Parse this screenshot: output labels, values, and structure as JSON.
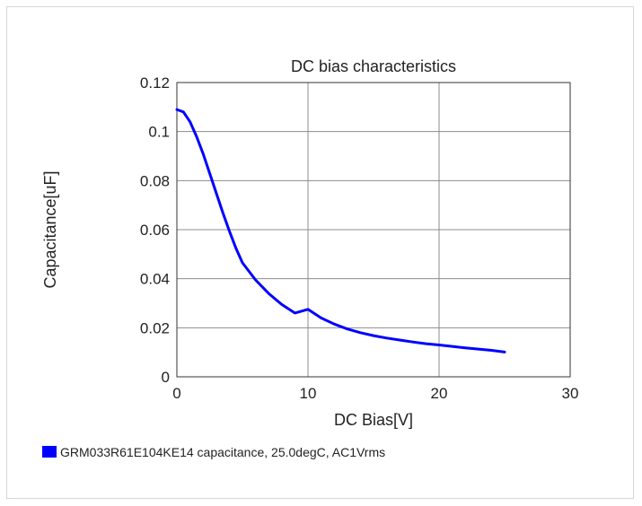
{
  "chart_data": {
    "type": "line",
    "title": "DC bias characteristics",
    "xlabel": "DC Bias[V]",
    "ylabel": "Capacitance[uF]",
    "xlim": [
      0,
      30
    ],
    "ylim": [
      0,
      0.12
    ],
    "x_ticks": [
      "0",
      "10",
      "20",
      "30"
    ],
    "y_ticks": [
      "0",
      "0.02",
      "0.04",
      "0.06",
      "0.08",
      "0.1",
      "0.12"
    ],
    "grid": true,
    "legend_position": "bottom-left",
    "series": [
      {
        "name": "GRM033R61E104KE14 capacitance, 25.0degC, AC1Vrms",
        "color": "#0000ff",
        "x": [
          0,
          0.5,
          1,
          1.5,
          2,
          2.5,
          3,
          3.5,
          4,
          4.5,
          5,
          6,
          7,
          8,
          9,
          10,
          11,
          12,
          13,
          14,
          15,
          16,
          17,
          18,
          19,
          20,
          21,
          22,
          23,
          24,
          25
        ],
        "y": [
          0.109,
          0.108,
          0.104,
          0.098,
          0.091,
          0.083,
          0.075,
          0.067,
          0.0595,
          0.0525,
          0.0465,
          0.0395,
          0.034,
          0.0295,
          0.026,
          0.0275,
          0.024,
          0.0215,
          0.0195,
          0.018,
          0.0168,
          0.0158,
          0.015,
          0.0142,
          0.0135,
          0.013,
          0.0124,
          0.0118,
          0.0113,
          0.0108,
          0.0101
        ]
      }
    ]
  }
}
